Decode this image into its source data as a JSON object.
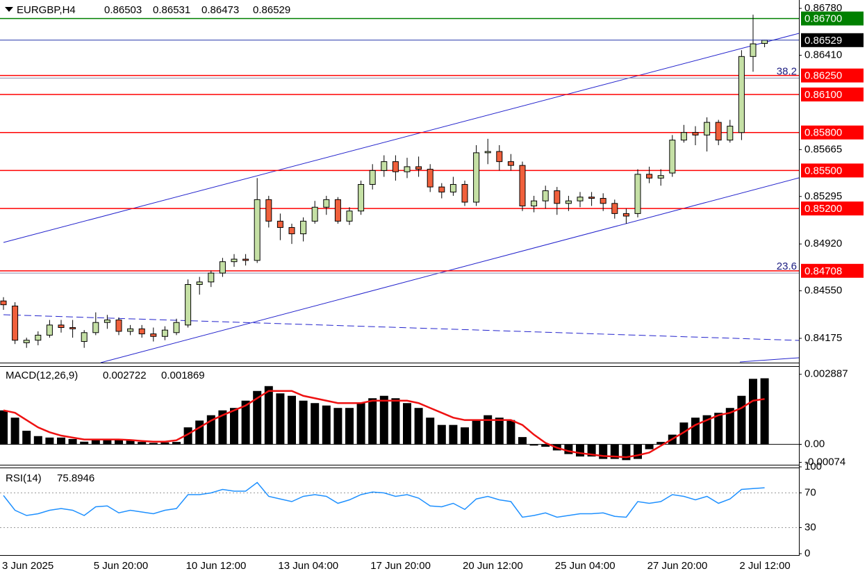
{
  "chart_data": [
    {
      "type": "candlestick",
      "title": "EURGBP,H4",
      "categories": [
        "3 Jun 2025",
        null,
        null,
        null,
        null,
        null,
        null,
        null,
        "5 Jun 20:00",
        null,
        null,
        null,
        null,
        null,
        null,
        null,
        "10 Jun 12:00",
        null,
        null,
        null,
        null,
        null,
        null,
        null,
        "13 Jun 04:00",
        null,
        null,
        null,
        null,
        null,
        null,
        null,
        "17 Jun 20:00",
        null,
        null,
        null,
        null,
        null,
        null,
        null,
        "20 Jun 12:00",
        null,
        null,
        null,
        null,
        null,
        null,
        null,
        "25 Jun 04:00",
        null,
        null,
        null,
        null,
        null,
        null,
        null,
        "27 Jun 20:00",
        null,
        null,
        null,
        null,
        null,
        null,
        null,
        "2 Jul 12:00",
        null,
        null
      ],
      "open": [
        0.8447,
        0.8443,
        0.8414,
        0.8416,
        0.842,
        0.8428,
        0.8426,
        0.8415,
        0.8422,
        0.843,
        0.8432,
        0.8423,
        0.8425,
        0.8421,
        0.8419,
        0.8422,
        0.8428,
        0.846,
        0.8462,
        0.8469,
        0.8478,
        0.848,
        0.8479,
        0.8527,
        0.851,
        0.8505,
        0.85,
        0.851,
        0.8521,
        0.8527,
        0.851,
        0.8518,
        0.8539,
        0.855,
        0.8557,
        0.8549,
        0.8553,
        0.8551,
        0.8537,
        0.8533,
        0.8539,
        0.8525,
        0.8564,
        0.8565,
        0.8557,
        0.8554,
        0.8522,
        0.8526,
        0.8534,
        0.8524,
        0.8526,
        0.8529,
        0.8528,
        0.8524,
        0.8516,
        0.8516,
        0.8547,
        0.8544,
        0.8548,
        0.8574,
        0.858,
        0.8578,
        0.8588,
        0.8574,
        0.858,
        0.864,
        0.86503
      ],
      "high": [
        0.845,
        0.8446,
        0.8418,
        0.8423,
        0.8432,
        0.8432,
        0.8432,
        0.8424,
        0.8438,
        0.8436,
        0.8434,
        0.8428,
        0.8428,
        0.8426,
        0.8427,
        0.8433,
        0.8464,
        0.8466,
        0.8471,
        0.8481,
        0.8484,
        0.8484,
        0.8544,
        0.853,
        0.8516,
        0.8508,
        0.8513,
        0.8526,
        0.853,
        0.8529,
        0.8521,
        0.8542,
        0.8555,
        0.8562,
        0.8562,
        0.856,
        0.8561,
        0.8555,
        0.854,
        0.8545,
        0.8542,
        0.857,
        0.8575,
        0.857,
        0.8563,
        0.8557,
        0.853,
        0.8538,
        0.8537,
        0.853,
        0.8533,
        0.8533,
        0.8532,
        0.8527,
        0.852,
        0.8551,
        0.8553,
        0.8551,
        0.8578,
        0.8586,
        0.8585,
        0.8592,
        0.859,
        0.859,
        0.8645,
        0.8673,
        0.86531
      ],
      "low": [
        0.844,
        0.8413,
        0.841,
        0.8412,
        0.8418,
        0.8422,
        0.8418,
        0.841,
        0.842,
        0.8425,
        0.842,
        0.842,
        0.8418,
        0.8415,
        0.8416,
        0.842,
        0.8426,
        0.8452,
        0.8458,
        0.8466,
        0.8474,
        0.8475,
        0.8477,
        0.8505,
        0.8495,
        0.8492,
        0.8494,
        0.8508,
        0.8515,
        0.8508,
        0.8507,
        0.8515,
        0.8535,
        0.8545,
        0.8542,
        0.8544,
        0.8545,
        0.8533,
        0.8528,
        0.853,
        0.8522,
        0.8522,
        0.8555,
        0.855,
        0.855,
        0.8518,
        0.8517,
        0.852,
        0.8515,
        0.8518,
        0.8521,
        0.8522,
        0.8518,
        0.8512,
        0.8508,
        0.8513,
        0.854,
        0.8538,
        0.8545,
        0.8572,
        0.857,
        0.8565,
        0.857,
        0.8572,
        0.8574,
        0.8628,
        0.86473
      ],
      "close": [
        0.8444,
        0.8416,
        0.8416,
        0.842,
        0.8428,
        0.8426,
        0.8425,
        0.8422,
        0.843,
        0.8432,
        0.8423,
        0.8425,
        0.8421,
        0.8419,
        0.8424,
        0.843,
        0.846,
        0.8462,
        0.8469,
        0.8478,
        0.848,
        0.8479,
        0.8527,
        0.851,
        0.8505,
        0.85,
        0.851,
        0.8521,
        0.8527,
        0.851,
        0.8518,
        0.8539,
        0.855,
        0.8557,
        0.8549,
        0.8553,
        0.8551,
        0.8537,
        0.8533,
        0.8539,
        0.8525,
        0.8564,
        0.8565,
        0.8557,
        0.8554,
        0.8522,
        0.8526,
        0.8534,
        0.8524,
        0.8526,
        0.8529,
        0.8528,
        0.8524,
        0.8516,
        0.8514,
        0.8547,
        0.8544,
        0.8546,
        0.8574,
        0.858,
        0.8578,
        0.8588,
        0.8574,
        0.8585,
        0.864,
        0.865,
        0.86529
      ],
      "up_color": "#c5e0a5",
      "down_color": "#f0603c",
      "ylim": [
        0.83983,
        0.86846
      ],
      "yticks": [
        {
          "value": 0.8678,
          "label": "0.86780"
        },
        {
          "value": 0.8641,
          "label": "0.86410"
        },
        0.85665,
        0.85295,
        {
          "value": 0.8492,
          "label": "0.84920"
        },
        {
          "value": 0.8455,
          "label": "0.84550"
        },
        0.84175
      ],
      "levels": [
        {
          "price": {
            "value": 0.867,
            "label": "0.86700"
          },
          "color": "#008000"
        },
        {
          "price": {
            "value": 0.8625,
            "label": "0.86250"
          },
          "color": "#ff0000"
        },
        {
          "price": {
            "value": 0.861,
            "label": "0.86100"
          },
          "color": "#ff0000"
        },
        {
          "price": {
            "value": 0.858,
            "label": "0.85800"
          },
          "color": "#ff0000"
        },
        {
          "price": {
            "value": 0.855,
            "label": "0.85500"
          },
          "color": "#ff0000"
        },
        {
          "price": {
            "value": 0.852,
            "label": "0.85200"
          },
          "color": "#ff0000"
        },
        {
          "price": 0.84708,
          "color": "#ff0000"
        }
      ],
      "fib_levels": [
        {
          "level": 38.2,
          "price": 0.8623
        },
        {
          "level": 23.6,
          "price": 0.8469
        }
      ]
    },
    {
      "type": "bar",
      "title": "MACD(12,26,9)",
      "series": [
        {
          "style": "bar",
          "color": "#000000",
          "values": [
            0.0014,
            0.0011,
            0.00056,
            0.00034,
            0.00028,
            0.00028,
            0.00022,
            0.00011,
            0.00022,
            0.00022,
            0.00022,
            0.00017,
            0.0001,
            6e-05,
            8e-05,
            0.0001,
            0.0007,
            0.00098,
            0.0012,
            0.0014,
            0.0015,
            0.0018,
            0.0022,
            0.0024,
            0.0021,
            0.002,
            0.0018,
            0.0017,
            0.0016,
            0.0015,
            0.0015,
            0.0017,
            0.0019,
            0.002,
            0.0019,
            0.0017,
            0.0015,
            0.0011,
            0.0008,
            0.0008,
            0.0007,
            0.001,
            0.0012,
            0.0011,
            0.001,
            0.0003,
            -5e-05,
            -0.0001,
            -0.00025,
            -0.0004,
            -0.0005,
            -0.0005,
            -0.0006,
            -0.0006,
            -0.00065,
            -0.0006,
            -0.0002,
            0.0001,
            0.0004,
            0.0009,
            0.0011,
            0.0012,
            0.0013,
            0.0015,
            0.002,
            0.0027,
            0.002722
          ]
        },
        {
          "style": "line",
          "color": "#ee1111",
          "values": [
            0.0014,
            0.0013,
            0.001,
            0.0007,
            0.0005,
            0.00036,
            0.00028,
            0.0002,
            0.0002,
            0.0002,
            0.0002,
            0.00018,
            0.00014,
            0.00011,
            0.00011,
            0.00017,
            0.00042,
            0.0007,
            0.00098,
            0.0012,
            0.0014,
            0.0016,
            0.0019,
            0.0022,
            0.0022,
            0.0022,
            0.002,
            0.0019,
            0.0018,
            0.0017,
            0.0017,
            0.0017,
            0.0018,
            0.0018,
            0.0018,
            0.0018,
            0.0017,
            0.0015,
            0.0013,
            0.0011,
            0.001,
            0.001,
            0.001,
            0.001,
            0.001,
            0.0008,
            0.0004,
            6e-05,
            -0.00014,
            -0.00028,
            -0.00036,
            -0.00042,
            -0.00048,
            -0.0005,
            -0.00053,
            -0.00045,
            -0.00034,
            -6e-05,
            0.00022,
            0.0005,
            0.0008,
            0.001,
            0.0012,
            0.0013,
            0.0015,
            0.0018,
            0.001869
          ]
        }
      ],
      "ylim": [
        -0.000841,
        0.003195
      ],
      "yticks": [
        0.002887,
        {
          "value": 0,
          "label": "0.00"
        },
        -0.00074
      ]
    },
    {
      "type": "line",
      "title": "RSI(14)",
      "color": "#1e90ff",
      "values": [
        67,
        50,
        44,
        46,
        50,
        52,
        50,
        44,
        54,
        55,
        47,
        50,
        48,
        46,
        50,
        52,
        68,
        68,
        70,
        74,
        72,
        72,
        82,
        66,
        63,
        60,
        66,
        68,
        66,
        58,
        62,
        68,
        71,
        70,
        66,
        68,
        64,
        55,
        54,
        58,
        51,
        63,
        66,
        62,
        60,
        42,
        44,
        47,
        42,
        44,
        46,
        46,
        47,
        43,
        42,
        60,
        58,
        60,
        68,
        66,
        62,
        66,
        58,
        63,
        74,
        75,
        75.8946
      ],
      "ylim": [
        0,
        100
      ],
      "yticks": [
        100,
        70,
        30,
        0
      ],
      "levels": [
        70,
        30
      ]
    }
  ]
}
